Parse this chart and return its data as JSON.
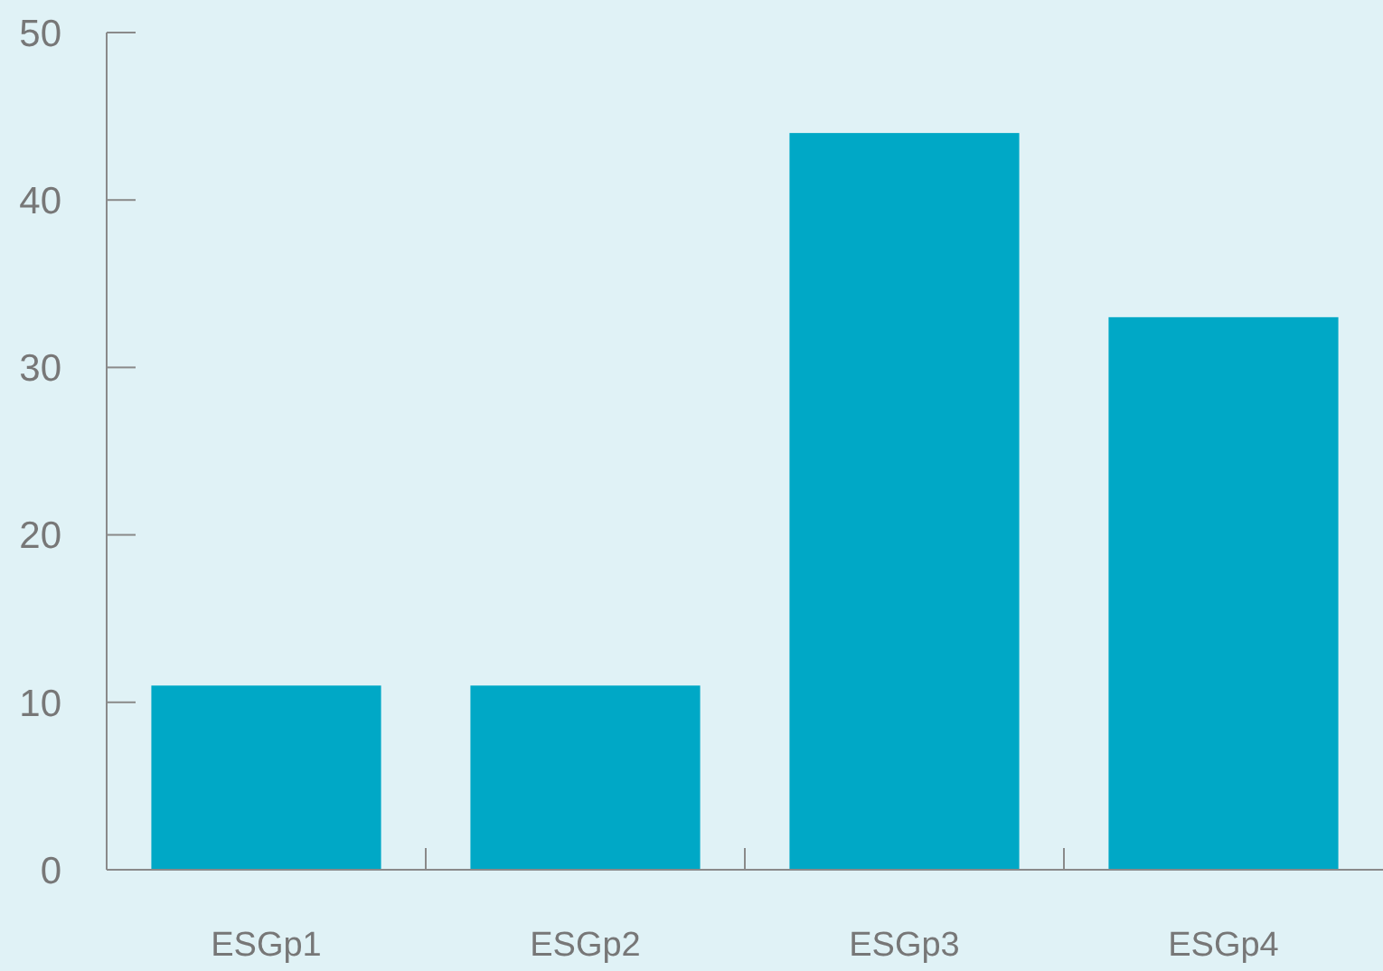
{
  "chart_data": {
    "type": "bar",
    "categories": [
      "ESGp1",
      "ESGp2",
      "ESGp3",
      "ESGp4"
    ],
    "values": [
      11,
      11,
      44,
      33
    ],
    "color": "#00a8c6",
    "ylim": [
      0,
      50
    ],
    "yticks": [
      0,
      10,
      20,
      30,
      40,
      50
    ],
    "grid": false
  }
}
